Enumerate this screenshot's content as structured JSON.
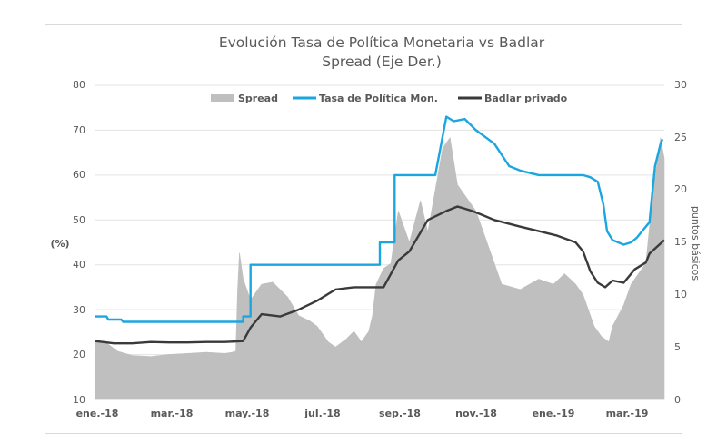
{
  "chart_data": {
    "type": "line",
    "title": "Evolución Tasa de Política Monetaria vs Badlar",
    "subtitle": "Spread (Eje Der.)",
    "ylabel_left": "(%)",
    "ylabel_right": "puntos básicos",
    "left_axis": {
      "ylim": [
        10,
        80
      ],
      "ticks": [
        "80",
        "70",
        "60",
        "50",
        "40",
        "30",
        "20",
        "10"
      ]
    },
    "right_axis": {
      "ylim": [
        0,
        30
      ],
      "ticks": [
        "30",
        "25",
        "20",
        "15",
        "10",
        "5",
        "0"
      ]
    },
    "x_tick_labels": [
      "ene.-18",
      "mar.-18",
      "may.-18",
      "jul.-18",
      "sep.-18",
      "nov.-18",
      "ene.-19",
      "mar.-19"
    ],
    "x_range": [
      0,
      15.4
    ],
    "legend": [
      "Spread",
      "Tasa de Política Mon.",
      "Badlar privado"
    ],
    "colors": {
      "spread": "#bfbfbf",
      "tasa": "#1aa7e0",
      "badlar": "#3a3a3a",
      "grid": "#e3e3e3",
      "text": "#595959"
    },
    "series": [
      {
        "name": "Spread",
        "axis": "right",
        "x": [
          0,
          0.3,
          0.6,
          1.0,
          1.5,
          2.0,
          2.5,
          3.0,
          3.5,
          3.7,
          3.8,
          3.85,
          3.9,
          4.0,
          4.2,
          4.5,
          4.8,
          5.0,
          5.2,
          5.5,
          5.8,
          6.0,
          6.3,
          6.5,
          6.8,
          7.0,
          7.2,
          7.4,
          7.5,
          7.6,
          7.8,
          8.0,
          8.2,
          8.5,
          8.8,
          9.0,
          9.2,
          9.4,
          9.6,
          9.8,
          10.0,
          10.3,
          10.6,
          11.0,
          11.5,
          12.0,
          12.4,
          12.7,
          13.0,
          13.2,
          13.5,
          13.7,
          13.9,
          14.0,
          14.3,
          14.5,
          14.7,
          14.9,
          15.1,
          15.3,
          15.4
        ],
        "values": [
          5.5,
          5.4,
          4.6,
          4.2,
          4.1,
          4.3,
          4.4,
          4.5,
          4.4,
          4.5,
          4.6,
          10.5,
          14.0,
          11.5,
          9.5,
          11.0,
          11.2,
          10.5,
          9.8,
          8.0,
          7.5,
          7.0,
          5.5,
          5.0,
          5.8,
          6.5,
          5.5,
          6.5,
          8.0,
          11.0,
          12.5,
          13.0,
          18.0,
          15.0,
          19.0,
          16.0,
          20.0,
          24.0,
          25.0,
          20.5,
          19.5,
          18.0,
          15.0,
          11.0,
          10.5,
          11.5,
          11.0,
          12.0,
          11.0,
          10.0,
          7.0,
          6.0,
          5.5,
          7.0,
          9.0,
          11.0,
          12.0,
          13.0,
          20.0,
          25.0,
          23.0
        ]
      },
      {
        "name": "Tasa de Política Mon.",
        "axis": "left",
        "x": [
          0,
          0.3,
          0.35,
          0.7,
          0.75,
          2.5,
          4.0,
          4.0,
          4.2,
          4.2,
          6.5,
          7.0,
          7.7,
          7.7,
          8.1,
          8.1,
          8.9,
          9.2,
          9.5,
          9.7,
          10.0,
          10.3,
          10.8,
          11.2,
          11.5,
          12.0,
          12.5,
          12.9,
          13.2,
          13.4,
          13.6,
          13.75,
          13.85,
          14.0,
          14.3,
          14.5,
          14.65,
          14.8,
          15.0,
          15.05,
          15.15,
          15.3,
          15.35
        ],
        "values": [
          28.5,
          28.5,
          27.8,
          27.8,
          27.3,
          27.3,
          27.3,
          28.5,
          28.5,
          40.0,
          40.0,
          40.0,
          40.0,
          45.0,
          45.0,
          60.0,
          60.0,
          60.0,
          73.0,
          72.0,
          72.5,
          70.0,
          67.0,
          62.0,
          61.0,
          60.0,
          60.0,
          60.0,
          60.0,
          59.5,
          58.5,
          53.5,
          47.5,
          45.5,
          44.5,
          45.0,
          46.0,
          47.5,
          49.5,
          54.0,
          62.0,
          67.0,
          68.0
        ]
      },
      {
        "name": "Badlar privado",
        "axis": "left",
        "x": [
          0,
          0.5,
          1.0,
          1.5,
          2.0,
          2.5,
          3.0,
          3.5,
          4.0,
          4.2,
          4.5,
          5.0,
          5.5,
          6.0,
          6.5,
          7.0,
          7.5,
          7.8,
          8.2,
          8.5,
          9.0,
          9.5,
          9.8,
          10.0,
          10.2,
          10.5,
          10.8,
          11.5,
          12.0,
          12.5,
          13.0,
          13.2,
          13.4,
          13.6,
          13.8,
          14.0,
          14.3,
          14.6,
          14.9,
          15.0,
          15.2,
          15.4
        ],
        "values": [
          23.0,
          22.5,
          22.5,
          22.8,
          22.7,
          22.7,
          22.8,
          22.8,
          23.0,
          26.0,
          29.0,
          28.5,
          30.0,
          32.0,
          34.5,
          35.0,
          35.0,
          35.0,
          41.0,
          43.0,
          50.0,
          52.0,
          53.0,
          52.5,
          52.0,
          51.0,
          50.0,
          48.5,
          47.5,
          46.5,
          45.0,
          43.0,
          38.5,
          36.0,
          35.0,
          36.5,
          36.0,
          39.0,
          40.5,
          42.5,
          44.0,
          45.5
        ]
      }
    ]
  }
}
